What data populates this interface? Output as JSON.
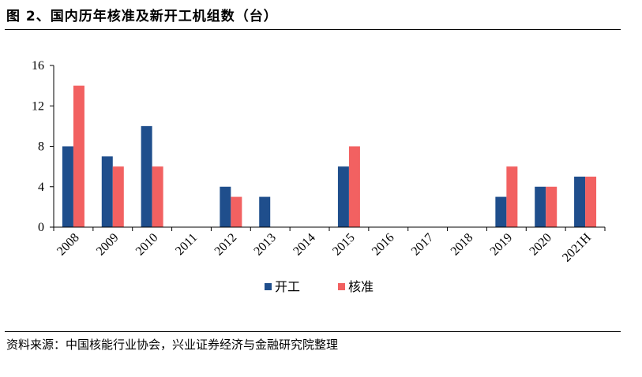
{
  "header": {
    "title": "图 2、国内历年核准及新开工机组数（台）"
  },
  "footer": {
    "source": "资料来源：中国核能行业协会，兴业证券经济与金融研究院整理"
  },
  "chart_data": {
    "type": "bar",
    "title": "图 2、国内历年核准及新开工机组数（台）",
    "categories": [
      "2008",
      "2009",
      "2010",
      "2011",
      "2012",
      "2013",
      "2014",
      "2015",
      "2016",
      "2017",
      "2018",
      "2019",
      "2020",
      "2021H"
    ],
    "series": [
      {
        "name": "开工",
        "color": "#1f4e8c",
        "values": [
          8,
          7,
          10,
          0,
          4,
          3,
          0,
          6,
          0,
          0,
          0,
          3,
          4,
          5
        ]
      },
      {
        "name": "核准",
        "color": "#f26161",
        "values": [
          14,
          6,
          6,
          0,
          3,
          0,
          0,
          8,
          0,
          0,
          0,
          6,
          4,
          5
        ]
      }
    ],
    "ylim": [
      0,
      16
    ],
    "yticks": [
      0,
      4,
      8,
      12,
      16
    ],
    "xlabel": "",
    "ylabel": "",
    "grid": false,
    "legend": "bottom-center"
  }
}
